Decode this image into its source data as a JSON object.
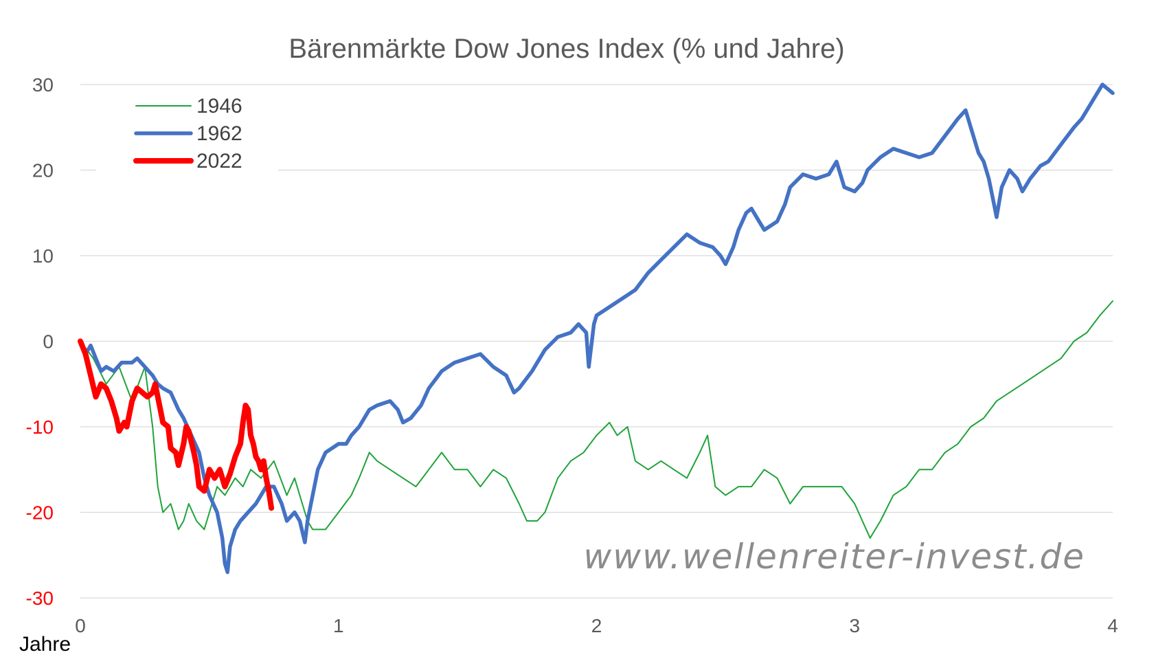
{
  "chart_data": {
    "type": "line",
    "title": "Bärenmärkte Dow Jones Index (% und Jahre)",
    "xlabel": "Jahre",
    "ylabel": "",
    "xlim": [
      0,
      4
    ],
    "ylim": [
      -30,
      30
    ],
    "x_ticks": [
      "0",
      "1",
      "2",
      "3",
      "4"
    ],
    "y_ticks": [
      "30",
      "20",
      "10",
      "0",
      "-10",
      "-20",
      "-30"
    ],
    "y_tick_colors": {
      "positive": "#595959",
      "negative": "#ff0000"
    },
    "grid": "horizontal",
    "legend_position": "top-left",
    "watermark": "www.wellenreiter-invest.de",
    "series": [
      {
        "name": "1946",
        "color": "#1fa33a",
        "line_width": "thin",
        "points": [
          [
            0,
            0
          ],
          [
            0.05,
            -2
          ],
          [
            0.1,
            -5
          ],
          [
            0.15,
            -3
          ],
          [
            0.2,
            -7
          ],
          [
            0.25,
            -3
          ],
          [
            0.28,
            -10
          ],
          [
            0.3,
            -17
          ],
          [
            0.32,
            -20
          ],
          [
            0.35,
            -19
          ],
          [
            0.38,
            -22
          ],
          [
            0.4,
            -21
          ],
          [
            0.42,
            -19
          ],
          [
            0.45,
            -21
          ],
          [
            0.48,
            -22
          ],
          [
            0.5,
            -20
          ],
          [
            0.53,
            -17
          ],
          [
            0.56,
            -18
          ],
          [
            0.6,
            -16
          ],
          [
            0.63,
            -17
          ],
          [
            0.66,
            -15
          ],
          [
            0.7,
            -16
          ],
          [
            0.75,
            -14
          ],
          [
            0.8,
            -18
          ],
          [
            0.83,
            -16
          ],
          [
            0.86,
            -19
          ],
          [
            0.88,
            -21
          ],
          [
            0.9,
            -22
          ],
          [
            0.95,
            -22
          ],
          [
            1.0,
            -20
          ],
          [
            1.05,
            -18
          ],
          [
            1.08,
            -16
          ],
          [
            1.12,
            -13
          ],
          [
            1.15,
            -14
          ],
          [
            1.2,
            -15
          ],
          [
            1.25,
            -16
          ],
          [
            1.3,
            -17
          ],
          [
            1.35,
            -15
          ],
          [
            1.4,
            -13
          ],
          [
            1.45,
            -15
          ],
          [
            1.5,
            -15
          ],
          [
            1.55,
            -17
          ],
          [
            1.6,
            -15
          ],
          [
            1.65,
            -16
          ],
          [
            1.7,
            -19
          ],
          [
            1.73,
            -21
          ],
          [
            1.77,
            -21
          ],
          [
            1.8,
            -20
          ],
          [
            1.85,
            -16
          ],
          [
            1.9,
            -14
          ],
          [
            1.95,
            -13
          ],
          [
            2.0,
            -11
          ],
          [
            2.05,
            -9.5
          ],
          [
            2.08,
            -11
          ],
          [
            2.12,
            -10
          ],
          [
            2.15,
            -14
          ],
          [
            2.2,
            -15
          ],
          [
            2.25,
            -14
          ],
          [
            2.3,
            -15
          ],
          [
            2.35,
            -16
          ],
          [
            2.4,
            -13
          ],
          [
            2.43,
            -11
          ],
          [
            2.46,
            -17
          ],
          [
            2.5,
            -18
          ],
          [
            2.55,
            -17
          ],
          [
            2.6,
            -17
          ],
          [
            2.65,
            -15
          ],
          [
            2.7,
            -16
          ],
          [
            2.75,
            -19
          ],
          [
            2.8,
            -17
          ],
          [
            2.85,
            -17
          ],
          [
            2.9,
            -17
          ],
          [
            2.95,
            -17
          ],
          [
            3.0,
            -19
          ],
          [
            3.03,
            -21
          ],
          [
            3.06,
            -23
          ],
          [
            3.1,
            -21
          ],
          [
            3.15,
            -18
          ],
          [
            3.2,
            -17
          ],
          [
            3.25,
            -15
          ],
          [
            3.3,
            -15
          ],
          [
            3.35,
            -13
          ],
          [
            3.4,
            -12
          ],
          [
            3.45,
            -10
          ],
          [
            3.5,
            -9
          ],
          [
            3.55,
            -7
          ],
          [
            3.6,
            -6
          ],
          [
            3.65,
            -5
          ],
          [
            3.7,
            -4
          ],
          [
            3.75,
            -3
          ],
          [
            3.8,
            -2
          ],
          [
            3.85,
            0
          ],
          [
            3.9,
            1
          ],
          [
            3.95,
            3
          ],
          [
            4.0,
            4.7
          ]
        ]
      },
      {
        "name": "1962",
        "color": "#4472c4",
        "line_width": "thick",
        "points": [
          [
            0,
            0
          ],
          [
            0.02,
            -1.5
          ],
          [
            0.04,
            -0.5
          ],
          [
            0.06,
            -2
          ],
          [
            0.08,
            -3.5
          ],
          [
            0.1,
            -3
          ],
          [
            0.13,
            -3.5
          ],
          [
            0.16,
            -2.5
          ],
          [
            0.2,
            -2.5
          ],
          [
            0.22,
            -2
          ],
          [
            0.25,
            -3
          ],
          [
            0.28,
            -4
          ],
          [
            0.3,
            -5
          ],
          [
            0.32,
            -5.5
          ],
          [
            0.35,
            -6
          ],
          [
            0.38,
            -8
          ],
          [
            0.4,
            -9
          ],
          [
            0.43,
            -11
          ],
          [
            0.46,
            -13
          ],
          [
            0.48,
            -16
          ],
          [
            0.5,
            -18
          ],
          [
            0.53,
            -20
          ],
          [
            0.55,
            -23
          ],
          [
            0.56,
            -26
          ],
          [
            0.57,
            -27
          ],
          [
            0.58,
            -24
          ],
          [
            0.6,
            -22
          ],
          [
            0.62,
            -21
          ],
          [
            0.65,
            -20
          ],
          [
            0.68,
            -19
          ],
          [
            0.7,
            -18
          ],
          [
            0.72,
            -17
          ],
          [
            0.75,
            -17
          ],
          [
            0.78,
            -19
          ],
          [
            0.8,
            -21
          ],
          [
            0.83,
            -20
          ],
          [
            0.85,
            -21
          ],
          [
            0.87,
            -23.5
          ],
          [
            0.88,
            -21
          ],
          [
            0.9,
            -18
          ],
          [
            0.92,
            -15
          ],
          [
            0.95,
            -13
          ],
          [
            1.0,
            -12
          ],
          [
            1.03,
            -12
          ],
          [
            1.05,
            -11
          ],
          [
            1.08,
            -10
          ],
          [
            1.12,
            -8
          ],
          [
            1.15,
            -7.5
          ],
          [
            1.2,
            -7
          ],
          [
            1.23,
            -8
          ],
          [
            1.25,
            -9.5
          ],
          [
            1.28,
            -9
          ],
          [
            1.32,
            -7.5
          ],
          [
            1.35,
            -5.5
          ],
          [
            1.4,
            -3.5
          ],
          [
            1.45,
            -2.5
          ],
          [
            1.5,
            -2
          ],
          [
            1.55,
            -1.5
          ],
          [
            1.6,
            -3
          ],
          [
            1.65,
            -4
          ],
          [
            1.68,
            -6
          ],
          [
            1.7,
            -5.5
          ],
          [
            1.75,
            -3.5
          ],
          [
            1.8,
            -1
          ],
          [
            1.85,
            0.5
          ],
          [
            1.9,
            1
          ],
          [
            1.93,
            2
          ],
          [
            1.96,
            1
          ],
          [
            1.97,
            -3
          ],
          [
            1.99,
            2
          ],
          [
            2.0,
            3
          ],
          [
            2.05,
            4
          ],
          [
            2.1,
            5
          ],
          [
            2.15,
            6
          ],
          [
            2.2,
            8
          ],
          [
            2.25,
            9.5
          ],
          [
            2.3,
            11
          ],
          [
            2.35,
            12.5
          ],
          [
            2.4,
            11.5
          ],
          [
            2.45,
            11
          ],
          [
            2.48,
            10
          ],
          [
            2.5,
            9
          ],
          [
            2.53,
            11
          ],
          [
            2.55,
            13
          ],
          [
            2.58,
            15
          ],
          [
            2.6,
            15.5
          ],
          [
            2.63,
            14
          ],
          [
            2.65,
            13
          ],
          [
            2.7,
            14
          ],
          [
            2.73,
            16
          ],
          [
            2.75,
            18
          ],
          [
            2.8,
            19.5
          ],
          [
            2.85,
            19
          ],
          [
            2.9,
            19.5
          ],
          [
            2.93,
            21
          ],
          [
            2.96,
            18
          ],
          [
            3.0,
            17.5
          ],
          [
            3.03,
            18.5
          ],
          [
            3.05,
            20
          ],
          [
            3.1,
            21.5
          ],
          [
            3.15,
            22.5
          ],
          [
            3.2,
            22
          ],
          [
            3.25,
            21.5
          ],
          [
            3.3,
            22
          ],
          [
            3.35,
            24
          ],
          [
            3.4,
            26
          ],
          [
            3.43,
            27
          ],
          [
            3.45,
            25
          ],
          [
            3.48,
            22
          ],
          [
            3.5,
            21
          ],
          [
            3.52,
            19
          ],
          [
            3.54,
            16
          ],
          [
            3.55,
            14.5
          ],
          [
            3.57,
            18
          ],
          [
            3.6,
            20
          ],
          [
            3.63,
            19
          ],
          [
            3.65,
            17.5
          ],
          [
            3.68,
            19
          ],
          [
            3.72,
            20.5
          ],
          [
            3.75,
            21
          ],
          [
            3.8,
            23
          ],
          [
            3.85,
            25
          ],
          [
            3.88,
            26
          ],
          [
            3.9,
            27
          ],
          [
            3.93,
            28.5
          ],
          [
            3.96,
            30
          ],
          [
            3.98,
            29.5
          ],
          [
            4.0,
            29
          ]
        ]
      },
      {
        "name": "2022",
        "color": "#ff0000",
        "line_width": "very thick",
        "points": [
          [
            0,
            0
          ],
          [
            0.02,
            -1.5
          ],
          [
            0.04,
            -4
          ],
          [
            0.06,
            -6.5
          ],
          [
            0.08,
            -5
          ],
          [
            0.1,
            -5.5
          ],
          [
            0.12,
            -7
          ],
          [
            0.14,
            -9
          ],
          [
            0.15,
            -10.5
          ],
          [
            0.17,
            -9.5
          ],
          [
            0.18,
            -10
          ],
          [
            0.2,
            -7
          ],
          [
            0.22,
            -5.5
          ],
          [
            0.24,
            -6
          ],
          [
            0.26,
            -6.5
          ],
          [
            0.28,
            -6
          ],
          [
            0.29,
            -5
          ],
          [
            0.3,
            -6.5
          ],
          [
            0.31,
            -8
          ],
          [
            0.32,
            -9.5
          ],
          [
            0.34,
            -10
          ],
          [
            0.35,
            -12.5
          ],
          [
            0.37,
            -13
          ],
          [
            0.38,
            -14.5
          ],
          [
            0.4,
            -12
          ],
          [
            0.41,
            -10
          ],
          [
            0.42,
            -10.5
          ],
          [
            0.44,
            -13
          ],
          [
            0.45,
            -14.5
          ],
          [
            0.46,
            -17
          ],
          [
            0.48,
            -17.5
          ],
          [
            0.5,
            -15
          ],
          [
            0.52,
            -16
          ],
          [
            0.54,
            -15
          ],
          [
            0.55,
            -16
          ],
          [
            0.56,
            -17
          ],
          [
            0.58,
            -15.5
          ],
          [
            0.6,
            -13.5
          ],
          [
            0.62,
            -12
          ],
          [
            0.63,
            -9.5
          ],
          [
            0.64,
            -7.5
          ],
          [
            0.65,
            -8
          ],
          [
            0.66,
            -11
          ],
          [
            0.67,
            -12
          ],
          [
            0.68,
            -13.5
          ],
          [
            0.69,
            -14
          ],
          [
            0.7,
            -15
          ],
          [
            0.71,
            -14
          ],
          [
            0.72,
            -16
          ],
          [
            0.73,
            -17.5
          ],
          [
            0.74,
            -19.5
          ]
        ]
      }
    ]
  }
}
